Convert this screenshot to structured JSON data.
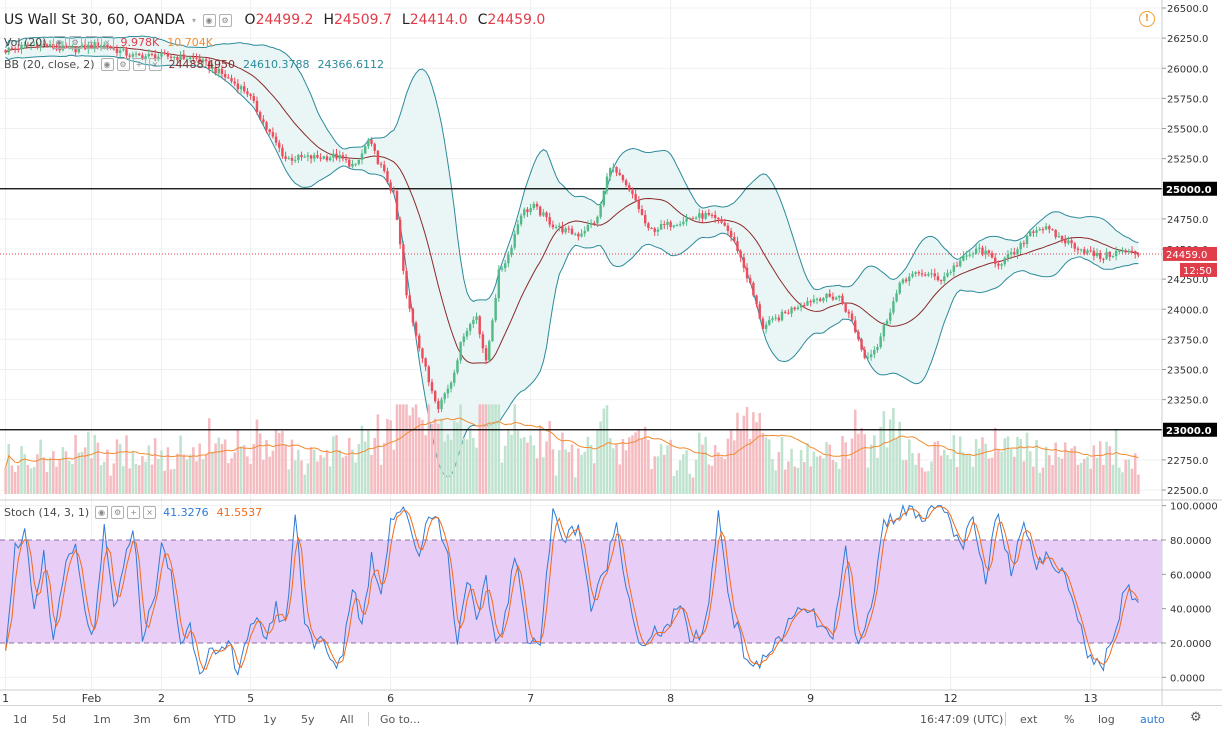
{
  "header": {
    "symbol": "US Wall St 30, 60, OANDA",
    "o_label": "O",
    "o_value": "24499.2",
    "h_label": "H",
    "h_value": "24509.7",
    "l_label": "L",
    "l_value": "24414.0",
    "c_label": "C",
    "c_value": "24459.0"
  },
  "vol_legend": {
    "label": "Vol (20)",
    "v1": "9.978K",
    "v2": "10.704K"
  },
  "bb_legend": {
    "label": "BB (20, close, 2)",
    "v1": "24488.4950",
    "v2": "24610.3788",
    "v3": "24366.6112"
  },
  "stoch_legend": {
    "label": "Stoch (14, 3, 1)",
    "k": "41.3276",
    "d": "41.5537"
  },
  "price_axis": {
    "ticks": [
      "26500.0",
      "26250.0",
      "26000.0",
      "25750.0",
      "25500.0",
      "25250.0",
      "25000.0",
      "24750.0",
      "24500.0",
      "24250.0",
      "24000.0",
      "23750.0",
      "23500.0",
      "23250.0",
      "23000.0",
      "22750.0",
      "22500.0"
    ],
    "marked_levels": [
      "25000.0",
      "23000.0"
    ],
    "current_price": "24459.0",
    "countdown": "12:50"
  },
  "stoch_axis": {
    "ticks": [
      "100.0000",
      "80.0000",
      "60.0000",
      "40.0000",
      "20.0000",
      "0.0000"
    ]
  },
  "time_axis": {
    "labels": [
      "1",
      "Feb",
      "2",
      "5",
      "6",
      "7",
      "8",
      "9",
      "12",
      "13"
    ]
  },
  "toolbar": {
    "ranges": [
      "1d",
      "5d",
      "1m",
      "3m",
      "6m",
      "YTD",
      "1y",
      "5y",
      "All"
    ],
    "goto": "Go to...",
    "clock": "16:47:09 (UTC)",
    "ext": "ext",
    "pct": "%",
    "log": "log",
    "auto": "auto"
  },
  "colors": {
    "up": "#53b987",
    "down": "#eb4d5c",
    "bb_band": "#2b8a9a",
    "bb_basis": "#8b2a2a",
    "stoch_k": "#2e7bd6",
    "stoch_d": "#f26a1b",
    "stoch_fill": "#e8cdf7",
    "vol_up": "#bfe3cf",
    "vol_down": "#f4bcc1",
    "vol_ma": "#f28b30"
  },
  "chart_data": {
    "type": "candlestick",
    "interval_minutes": 60,
    "price_range": [
      22450,
      26550
    ],
    "stoch_range": [
      0,
      100
    ],
    "close_anchors": [
      [
        0,
        26150
      ],
      [
        10,
        26200
      ],
      [
        20,
        26150
      ],
      [
        30,
        26200
      ],
      [
        40,
        26100
      ],
      [
        50,
        26100
      ],
      [
        60,
        26080
      ],
      [
        68,
        25950
      ],
      [
        76,
        25800
      ],
      [
        82,
        25500
      ],
      [
        88,
        25250
      ],
      [
        98,
        25260
      ],
      [
        104,
        25270
      ],
      [
        110,
        25180
      ],
      [
        114,
        25400
      ],
      [
        118,
        25180
      ],
      [
        122,
        24950
      ],
      [
        126,
        24100
      ],
      [
        130,
        23700
      ],
      [
        133,
        23400
      ],
      [
        136,
        23200
      ],
      [
        140,
        23400
      ],
      [
        144,
        23800
      ],
      [
        148,
        23950
      ],
      [
        151,
        23550
      ],
      [
        155,
        24300
      ],
      [
        158,
        24450
      ],
      [
        162,
        24800
      ],
      [
        166,
        24850
      ],
      [
        172,
        24700
      ],
      [
        176,
        24650
      ],
      [
        180,
        24620
      ],
      [
        186,
        24750
      ],
      [
        190,
        25200
      ],
      [
        194,
        25050
      ],
      [
        198,
        24900
      ],
      [
        202,
        24650
      ],
      [
        208,
        24700
      ],
      [
        214,
        24750
      ],
      [
        220,
        24780
      ],
      [
        226,
        24700
      ],
      [
        230,
        24500
      ],
      [
        234,
        24200
      ],
      [
        238,
        23850
      ],
      [
        244,
        23950
      ],
      [
        250,
        24050
      ],
      [
        256,
        24100
      ],
      [
        262,
        24100
      ],
      [
        266,
        23900
      ],
      [
        270,
        23600
      ],
      [
        274,
        23700
      ],
      [
        278,
        24000
      ],
      [
        282,
        24250
      ],
      [
        288,
        24300
      ],
      [
        294,
        24250
      ],
      [
        300,
        24400
      ],
      [
        306,
        24500
      ],
      [
        312,
        24380
      ],
      [
        318,
        24480
      ],
      [
        322,
        24650
      ],
      [
        326,
        24680
      ],
      [
        332,
        24580
      ],
      [
        338,
        24500
      ],
      [
        344,
        24430
      ],
      [
        350,
        24480
      ],
      [
        356,
        24459
      ]
    ],
    "stoch_k_anchors": [
      [
        0,
        20
      ],
      [
        3,
        75
      ],
      [
        6,
        85
      ],
      [
        9,
        35
      ],
      [
        12,
        70
      ],
      [
        15,
        20
      ],
      [
        18,
        60
      ],
      [
        22,
        75
      ],
      [
        25,
        35
      ],
      [
        28,
        25
      ],
      [
        31,
        85
      ],
      [
        34,
        40
      ],
      [
        37,
        60
      ],
      [
        40,
        90
      ],
      [
        43,
        25
      ],
      [
        46,
        40
      ],
      [
        49,
        75
      ],
      [
        52,
        60
      ],
      [
        55,
        20
      ],
      [
        58,
        30
      ],
      [
        61,
        5
      ],
      [
        64,
        15
      ],
      [
        67,
        10
      ],
      [
        70,
        20
      ],
      [
        73,
        5
      ],
      [
        76,
        25
      ],
      [
        79,
        30
      ],
      [
        82,
        25
      ],
      [
        85,
        40
      ],
      [
        88,
        30
      ],
      [
        91,
        95
      ],
      [
        94,
        35
      ],
      [
        97,
        20
      ],
      [
        100,
        20
      ],
      [
        103,
        5
      ],
      [
        106,
        15
      ],
      [
        109,
        55
      ],
      [
        112,
        30
      ],
      [
        115,
        70
      ],
      [
        118,
        50
      ],
      [
        121,
        92
      ],
      [
        124,
        98
      ],
      [
        127,
        90
      ],
      [
        130,
        70
      ],
      [
        133,
        98
      ],
      [
        136,
        90
      ],
      [
        139,
        70
      ],
      [
        142,
        20
      ],
      [
        145,
        60
      ],
      [
        148,
        30
      ],
      [
        151,
        55
      ],
      [
        154,
        20
      ],
      [
        157,
        35
      ],
      [
        160,
        70
      ],
      [
        164,
        25
      ],
      [
        168,
        20
      ],
      [
        172,
        95
      ],
      [
        176,
        80
      ],
      [
        180,
        90
      ],
      [
        184,
        40
      ],
      [
        188,
        60
      ],
      [
        192,
        90
      ],
      [
        196,
        45
      ],
      [
        200,
        15
      ],
      [
        204,
        25
      ],
      [
        208,
        30
      ],
      [
        212,
        40
      ],
      [
        216,
        20
      ],
      [
        220,
        30
      ],
      [
        224,
        95
      ],
      [
        228,
        40
      ],
      [
        232,
        15
      ],
      [
        236,
        5
      ],
      [
        240,
        15
      ],
      [
        244,
        25
      ],
      [
        248,
        35
      ],
      [
        252,
        40
      ],
      [
        256,
        30
      ],
      [
        260,
        20
      ],
      [
        264,
        75
      ],
      [
        268,
        15
      ],
      [
        272,
        40
      ],
      [
        276,
        90
      ],
      [
        280,
        95
      ],
      [
        284,
        99
      ],
      [
        288,
        95
      ],
      [
        292,
        99
      ],
      [
        296,
        95
      ],
      [
        300,
        75
      ],
      [
        304,
        90
      ],
      [
        308,
        55
      ],
      [
        312,
        99
      ],
      [
        316,
        60
      ],
      [
        320,
        95
      ],
      [
        324,
        65
      ],
      [
        328,
        70
      ],
      [
        332,
        60
      ],
      [
        336,
        45
      ],
      [
        340,
        15
      ],
      [
        344,
        5
      ],
      [
        348,
        20
      ],
      [
        352,
        55
      ],
      [
        356,
        41
      ]
    ],
    "volume_range": [
      0,
      30
    ]
  }
}
